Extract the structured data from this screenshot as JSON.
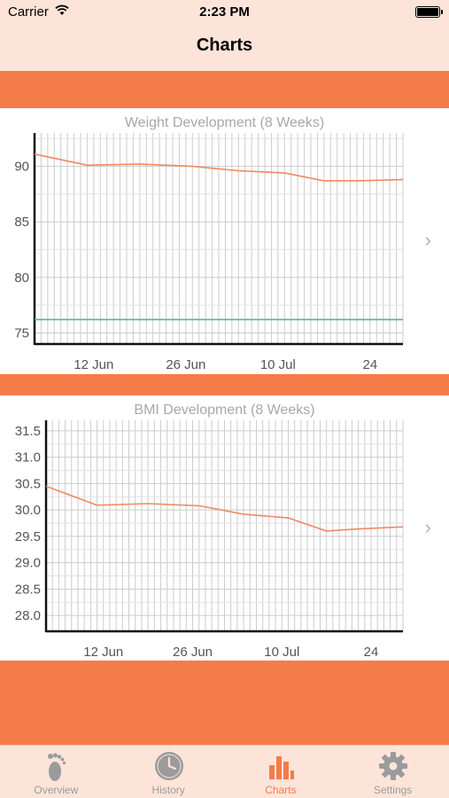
{
  "status_bar": {
    "carrier": "Carrier",
    "time": "2:23 PM"
  },
  "nav": {
    "title": "Charts"
  },
  "colors": {
    "accent": "#f47c48",
    "header_bg": "#fde4d9",
    "goal_line": "#4fb3a3",
    "grid": "#cccccc",
    "tab_inactive": "#9b9b9b"
  },
  "chart_data": [
    {
      "type": "line",
      "title": "Weight Development (8 Weeks)",
      "ylim": [
        74,
        93
      ],
      "y_ticks": [
        75,
        80,
        85,
        90
      ],
      "xlim": [
        0,
        56
      ],
      "x_tick_labels": [
        {
          "label": "12 Jun",
          "x": 9
        },
        {
          "label": "26 Jun",
          "x": 23
        },
        {
          "label": "10 Jul",
          "x": 37
        },
        {
          "label": "24",
          "x": 51
        }
      ],
      "series": [
        {
          "role": "weight",
          "color": "#f08a62",
          "x": [
            0,
            8,
            16,
            24,
            31,
            38,
            44,
            49,
            56
          ],
          "y": [
            91.1,
            90.1,
            90.2,
            90.0,
            89.6,
            89.4,
            88.7,
            88.7,
            88.8
          ]
        },
        {
          "role": "goal",
          "color": "#4fb3a3",
          "x": [
            0,
            56
          ],
          "y": [
            76.2,
            76.2
          ]
        }
      ],
      "grid": true
    },
    {
      "type": "line",
      "title": "BMI Development (8 Weeks)",
      "ylim": [
        27.7,
        31.7
      ],
      "y_ticks": [
        28.0,
        28.5,
        29.0,
        29.5,
        30.0,
        30.5,
        31.0,
        31.5
      ],
      "xlim": [
        0,
        56
      ],
      "x_tick_labels": [
        {
          "label": "12 Jun",
          "x": 9
        },
        {
          "label": "26 Jun",
          "x": 23
        },
        {
          "label": "10 Jul",
          "x": 37
        },
        {
          "label": "24",
          "x": 51
        }
      ],
      "series": [
        {
          "role": "bmi",
          "color": "#f08a62",
          "x": [
            0,
            8,
            16,
            24,
            31,
            38,
            44,
            49,
            56
          ],
          "y": [
            30.45,
            30.09,
            30.12,
            30.08,
            29.92,
            29.85,
            29.6,
            29.64,
            29.68
          ]
        }
      ],
      "grid": true
    }
  ],
  "tabs": [
    {
      "label": "Overview",
      "icon": "footprint-icon",
      "active": false
    },
    {
      "label": "History",
      "icon": "clock-icon",
      "active": false
    },
    {
      "label": "Charts",
      "icon": "bar-chart-icon",
      "active": true
    },
    {
      "label": "Settings",
      "icon": "gear-icon",
      "active": false
    }
  ]
}
